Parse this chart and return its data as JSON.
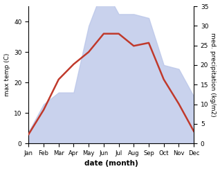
{
  "months": [
    "Jan",
    "Feb",
    "Mar",
    "Apr",
    "May",
    "Jun",
    "Jul",
    "Aug",
    "Sep",
    "Oct",
    "Nov",
    "Dec"
  ],
  "temp": [
    3,
    11,
    21,
    26,
    30,
    36,
    36,
    32,
    33,
    21,
    13,
    4
  ],
  "precip": [
    3,
    10,
    13,
    13,
    30,
    40,
    33,
    33,
    32,
    20,
    19,
    12
  ],
  "temp_color": "#c0392b",
  "precip_fill_color": "#b8c4e8",
  "precip_fill_alpha": 0.75,
  "precip_line_color": "#b8c4e8",
  "xlabel": "date (month)",
  "ylabel_left": "max temp (C)",
  "ylabel_right": "med. precipitation (kg/m2)",
  "ylim_left": [
    0,
    45
  ],
  "ylim_right": [
    0,
    35
  ],
  "yticks_left": [
    0,
    10,
    20,
    30,
    40
  ],
  "yticks_right": [
    0,
    5,
    10,
    15,
    20,
    25,
    30,
    35
  ],
  "figsize": [
    3.18,
    2.47
  ],
  "dpi": 100
}
